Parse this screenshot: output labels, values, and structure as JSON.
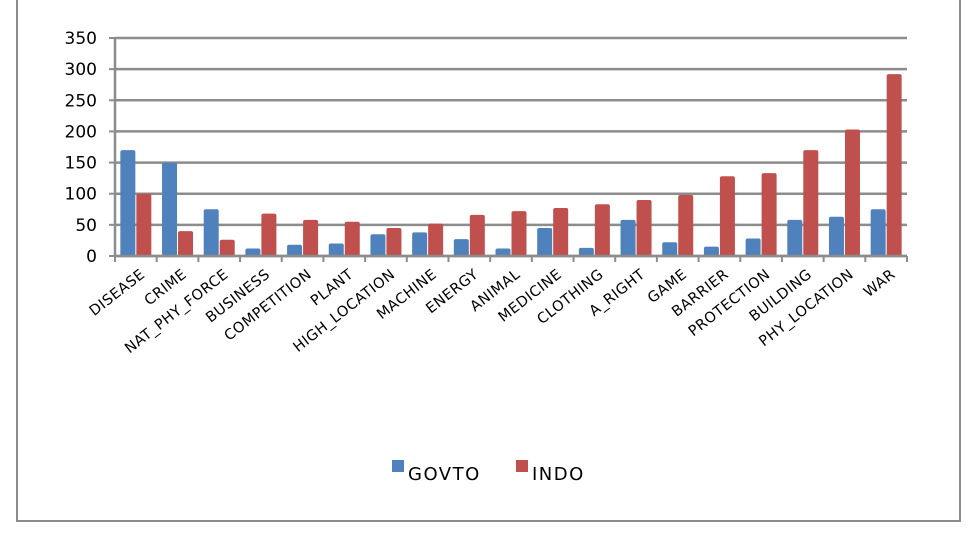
{
  "colors": {
    "series_a": "#4f81bd",
    "series_b": "#c0504d",
    "grid": "#8c8c8c",
    "frame": "#8c8c8c"
  },
  "chart_data": {
    "type": "bar",
    "title": "",
    "xlabel": "",
    "ylabel": "",
    "ylim": [
      0,
      350
    ],
    "yticks": [
      0,
      50,
      100,
      150,
      200,
      250,
      300,
      350
    ],
    "grid": true,
    "legend_position": "bottom",
    "categories": [
      "DISEASE",
      "CRIME",
      "NAT_PHY_FORCE",
      "BUSINESS",
      "COMPETITION",
      "PLANT",
      "HIGH_LOCATION",
      "MACHINE",
      "ENERGY",
      "ANIMAL",
      "MEDICINE",
      "CLOTHING",
      "A_RIGHT",
      "GAME",
      "BARRIER",
      "PROTECTION",
      "BUILDING",
      "PHY_LOCATION",
      "WAR"
    ],
    "series": [
      {
        "name": "GOVTO",
        "values": [
          170,
          150,
          75,
          12,
          18,
          20,
          35,
          38,
          27,
          12,
          45,
          13,
          58,
          22,
          15,
          28,
          58,
          63,
          75
        ]
      },
      {
        "name": "INDO",
        "values": [
          100,
          40,
          26,
          68,
          58,
          55,
          45,
          52,
          66,
          72,
          77,
          83,
          90,
          98,
          128,
          133,
          170,
          203,
          292
        ]
      }
    ]
  }
}
